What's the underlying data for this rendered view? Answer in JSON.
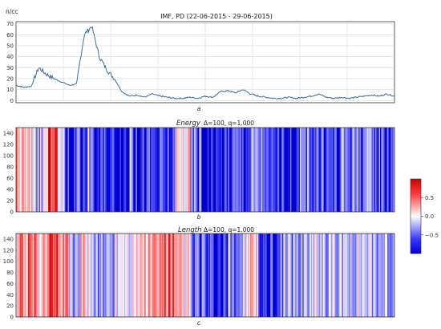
{
  "chart_data": [
    {
      "type": "line",
      "title": "IMF, PD  (22-06-2015 - 29-06-2015)",
      "ylabel": "n/cc",
      "sublabel": "a",
      "ylim": [
        -2,
        72
      ],
      "yticks": [
        0,
        10,
        20,
        30,
        40,
        50,
        60,
        70
      ],
      "grid": true,
      "series": [
        {
          "color": "#3a6ea5",
          "x": [
            0,
            0.02,
            0.04,
            0.06,
            0.08,
            0.1,
            0.12,
            0.14,
            0.16,
            0.18,
            0.2,
            0.22,
            0.24,
            0.26,
            0.28,
            0.3,
            0.32,
            0.34,
            0.36,
            0.38,
            0.4,
            0.42,
            0.44,
            0.46,
            0.48,
            0.5,
            0.52,
            0.54,
            0.56,
            0.58,
            0.6,
            0.62,
            0.64,
            0.66,
            0.68,
            0.7,
            0.72,
            0.74,
            0.76,
            0.78,
            0.8,
            0.82,
            0.84,
            0.86,
            0.88,
            0.9,
            0.92,
            0.94,
            0.96,
            0.98,
            1.0
          ],
          "values": [
            14,
            12,
            13,
            30,
            24,
            20,
            17,
            14,
            15,
            60,
            68,
            40,
            28,
            20,
            8,
            4,
            5,
            3,
            6,
            4,
            3,
            2,
            2,
            3,
            2,
            4,
            3,
            8,
            9,
            7,
            10,
            6,
            4,
            3,
            2,
            2,
            3,
            2,
            3,
            4,
            6,
            3,
            2,
            3,
            2,
            3,
            4,
            5,
            4,
            6,
            4
          ]
        }
      ]
    },
    {
      "type": "heatmap",
      "title": "Energy",
      "title_suffix": "Δ=100, q=1.000",
      "sublabel": "b",
      "ylim": [
        0,
        150
      ],
      "yticks": [
        0,
        20,
        40,
        60,
        80,
        100,
        120,
        140
      ],
      "colormap": "bwr",
      "stripes": [
        {
          "x": [
            0.0,
            0.02
          ],
          "v": 0.3
        },
        {
          "x": [
            0.02,
            0.05
          ],
          "v": 0.1
        },
        {
          "x": [
            0.05,
            0.07
          ],
          "v": -0.3
        },
        {
          "x": [
            0.07,
            0.085
          ],
          "v": 0.0
        },
        {
          "x": [
            0.085,
            0.095
          ],
          "v": 0.85
        },
        {
          "x": [
            0.095,
            0.11
          ],
          "v": 0.95
        },
        {
          "x": [
            0.11,
            0.13
          ],
          "v": -0.2
        },
        {
          "x": [
            0.13,
            0.16
          ],
          "v": -0.85
        },
        {
          "x": [
            0.16,
            0.17
          ],
          "v": -0.2
        },
        {
          "x": [
            0.17,
            0.19
          ],
          "v": -0.9
        },
        {
          "x": [
            0.19,
            0.2
          ],
          "v": -0.3
        },
        {
          "x": [
            0.2,
            0.3
          ],
          "v": -0.85
        },
        {
          "x": [
            0.3,
            0.31
          ],
          "v": -0.2
        },
        {
          "x": [
            0.31,
            0.42
          ],
          "v": -0.85
        },
        {
          "x": [
            0.42,
            0.46
          ],
          "v": 0.05
        },
        {
          "x": [
            0.46,
            0.49
          ],
          "v": -0.6
        },
        {
          "x": [
            0.49,
            0.56
          ],
          "v": -0.95
        },
        {
          "x": [
            0.56,
            0.62
          ],
          "v": -0.7
        },
        {
          "x": [
            0.62,
            0.66
          ],
          "v": -0.5
        },
        {
          "x": [
            0.66,
            0.75
          ],
          "v": -0.9
        },
        {
          "x": [
            0.75,
            0.8
          ],
          "v": -0.55
        },
        {
          "x": [
            0.8,
            0.86
          ],
          "v": -0.75
        },
        {
          "x": [
            0.86,
            0.93
          ],
          "v": -0.5
        },
        {
          "x": [
            0.93,
            1.0
          ],
          "v": -0.65
        }
      ]
    },
    {
      "type": "heatmap",
      "title": "Length",
      "title_suffix": "Δ=100, q=1.000",
      "sublabel": "c",
      "ylim": [
        0,
        150
      ],
      "yticks": [
        0,
        20,
        40,
        60,
        80,
        100,
        120,
        140
      ],
      "colormap": "bwr",
      "stripes": [
        {
          "x": [
            0.0,
            0.06
          ],
          "v": 0.45
        },
        {
          "x": [
            0.06,
            0.085
          ],
          "v": 0.25
        },
        {
          "x": [
            0.085,
            0.11
          ],
          "v": 0.9
        },
        {
          "x": [
            0.11,
            0.14
          ],
          "v": 0.35
        },
        {
          "x": [
            0.14,
            0.17
          ],
          "v": -0.3
        },
        {
          "x": [
            0.17,
            0.2
          ],
          "v": 0.1
        },
        {
          "x": [
            0.2,
            0.26
          ],
          "v": -0.4
        },
        {
          "x": [
            0.26,
            0.33
          ],
          "v": 0.05
        },
        {
          "x": [
            0.33,
            0.38
          ],
          "v": 0.3
        },
        {
          "x": [
            0.38,
            0.42
          ],
          "v": 0.55
        },
        {
          "x": [
            0.42,
            0.46
          ],
          "v": 0.1
        },
        {
          "x": [
            0.46,
            0.5
          ],
          "v": -0.65
        },
        {
          "x": [
            0.5,
            0.56
          ],
          "v": -0.95
        },
        {
          "x": [
            0.56,
            0.6
          ],
          "v": -0.5
        },
        {
          "x": [
            0.6,
            0.64
          ],
          "v": 0.1
        },
        {
          "x": [
            0.64,
            0.7
          ],
          "v": -0.75
        },
        {
          "x": [
            0.7,
            0.76
          ],
          "v": -0.4
        },
        {
          "x": [
            0.76,
            0.82
          ],
          "v": -0.2
        },
        {
          "x": [
            0.82,
            0.88
          ],
          "v": -0.35
        },
        {
          "x": [
            0.88,
            0.94
          ],
          "v": -0.15
        },
        {
          "x": [
            0.94,
            1.0
          ],
          "v": -0.3
        }
      ]
    }
  ],
  "colorbar": {
    "range": [
      -1,
      1
    ],
    "ticks": [
      {
        "v": 0.5,
        "label": "0.5"
      },
      {
        "v": 0.0,
        "label": "0.0"
      },
      {
        "v": -0.5,
        "label": "−0.5"
      }
    ],
    "colors": [
      "#0000ff",
      "#ffffff",
      "#ff0000"
    ]
  }
}
